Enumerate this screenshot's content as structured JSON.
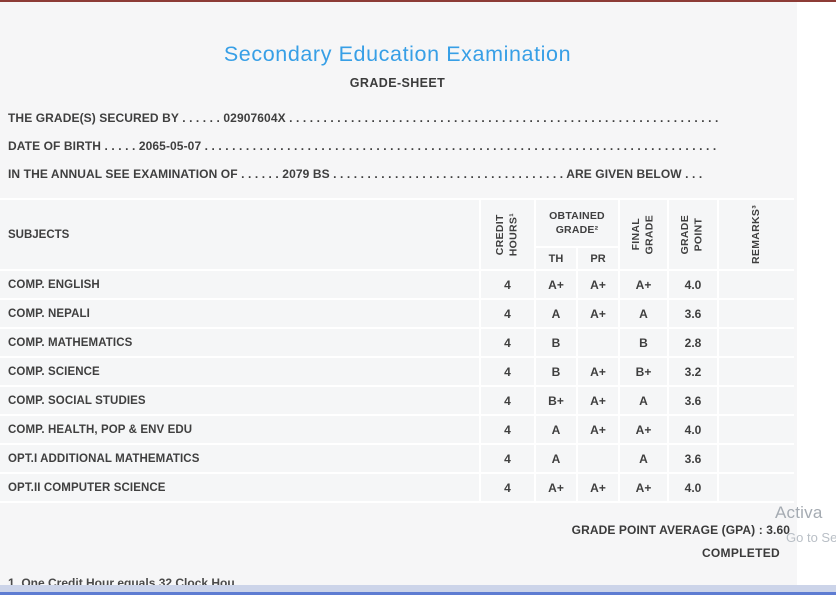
{
  "header": {
    "title": "Secondary Education Examination",
    "subtitle": "GRADE-SHEET"
  },
  "info": {
    "line1": "THE GRADE(S) SECURED BY . . . . . . 02907604X . . . . . . . . . . . . . . . . . . . . . . . . . . . . . . . . . . . . . . . . . . . . . . . . . . . . . . . . . . . . . . . . . . . . . . ",
    "line2": "DATE OF BIRTH . . . . . 2065-05-07 . . . . . . . . . . . . . . . . . . . . . . . . . . . . . . . . . . . . . . . . . . . . . . . . . . . . . . . . . . . . . . . . . . . . . . . . . . . . ",
    "line3": "IN THE ANNUAL SEE EXAMINATION OF . . . . . . 2079 BS . . . . . . . . . . . . . . . . . . . . . . . . . . . . . . . . . . ARE GIVEN BELOW . . ."
  },
  "table": {
    "col_subjects": "SUBJECTS",
    "col_credit": "CREDIT\nHOURS¹",
    "col_obtained": "OBTAINED\nGRADE²",
    "col_th": "TH",
    "col_pr": "PR",
    "col_final": "FINAL\nGRADE",
    "col_grade_point": "GRADE\nPOINT",
    "col_remarks": "REMARKS³",
    "rows": [
      {
        "subject": "COMP. ENGLISH",
        "credit": "4",
        "th": "A+",
        "pr": "A+",
        "final": "A+",
        "gp": "4.0",
        "remarks": ""
      },
      {
        "subject": "COMP. NEPALI",
        "credit": "4",
        "th": "A",
        "pr": "A+",
        "final": "A",
        "gp": "3.6",
        "remarks": ""
      },
      {
        "subject": "COMP. MATHEMATICS",
        "credit": "4",
        "th": "B",
        "pr": "",
        "final": "B",
        "gp": "2.8",
        "remarks": ""
      },
      {
        "subject": "COMP. SCIENCE",
        "credit": "4",
        "th": "B",
        "pr": "A+",
        "final": "B+",
        "gp": "3.2",
        "remarks": ""
      },
      {
        "subject": "COMP. SOCIAL STUDIES",
        "credit": "4",
        "th": "B+",
        "pr": "A+",
        "final": "A",
        "gp": "3.6",
        "remarks": ""
      },
      {
        "subject": "COMP. HEALTH, POP & ENV EDU",
        "credit": "4",
        "th": "A",
        "pr": "A+",
        "final": "A+",
        "gp": "4.0",
        "remarks": ""
      },
      {
        "subject": "OPT.I ADDITIONAL MATHEMATICS",
        "credit": "4",
        "th": "A",
        "pr": "",
        "final": "A",
        "gp": "3.6",
        "remarks": ""
      },
      {
        "subject": "OPT.II COMPUTER SCIENCE",
        "credit": "4",
        "th": "A+",
        "pr": "A+",
        "final": "A+",
        "gp": "4.0",
        "remarks": ""
      }
    ]
  },
  "summary": {
    "gpa_label": "GRADE POINT AVERAGE (GPA) : ",
    "gpa_value": "3.60",
    "status": "COMPLETED"
  },
  "footnote": "1. One Credit Hour equals 32 Clock Hou",
  "watermark": {
    "line1": "Activa",
    "line2": "Go to Se"
  },
  "colors": {
    "accent_blue": "#379fe6",
    "top_line_red": "#8d3c36",
    "panel_bg": "#f6f6f7",
    "taskbar": "#ccd4e9",
    "taskbar_edge": "#5e7cd2"
  }
}
